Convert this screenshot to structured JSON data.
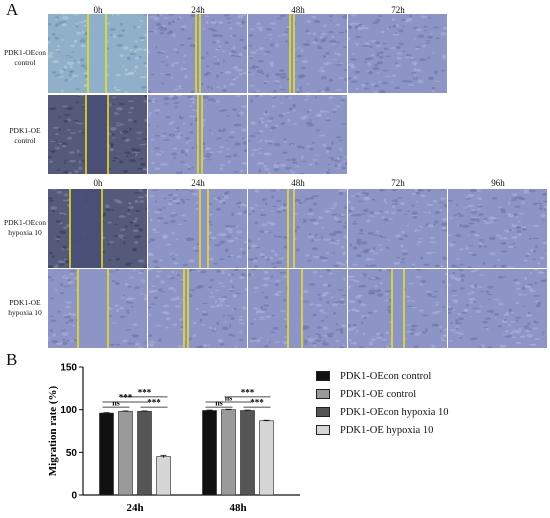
{
  "panel_a": {
    "letter": "A",
    "group1": {
      "times": [
        "0h",
        "24h",
        "48h",
        "72h"
      ],
      "rows": [
        {
          "label_line1": "PDK1-OEcon",
          "label_line2": "control"
        },
        {
          "label_line1": "PDK1-OE",
          "label_line2": "control"
        }
      ]
    },
    "group2": {
      "times": [
        "0h",
        "24h",
        "48h",
        "72h",
        "96h"
      ],
      "rows": [
        {
          "label_line1": "PDK1-OEcon",
          "label_line2": "hypoxia 10"
        },
        {
          "label_line1": "PDK1-OE",
          "label_line2": "hypoxia 10"
        }
      ]
    }
  },
  "panel_b": {
    "letter": "B"
  },
  "colors": {
    "scratch_line": "#e8e020",
    "series": [
      "#111111",
      "#9a9a9a",
      "#555555",
      "#d6d6d6"
    ]
  },
  "chart_data": {
    "type": "bar",
    "categories": [
      "24h",
      "48h"
    ],
    "series": [
      {
        "name": "PDK1-OEcon control",
        "values": [
          96,
          99
        ],
        "errors": [
          0.5,
          0.5
        ]
      },
      {
        "name": "PDK1-OE control",
        "values": [
          98,
          100
        ],
        "errors": [
          0.5,
          0.5
        ]
      },
      {
        "name": "PDK1-OEcon hypoxia 10",
        "values": [
          98,
          99
        ],
        "errors": [
          0.5,
          0.5
        ]
      },
      {
        "name": "PDK1-OE hypoxia 10",
        "values": [
          45,
          87
        ],
        "errors": [
          1.5,
          0.6
        ]
      }
    ],
    "ylabel": "Migration rate (%)",
    "xlabel": "",
    "ylim": [
      0,
      150
    ],
    "yticks": [
      0,
      50,
      100,
      150
    ],
    "grid": false,
    "legend_position": "right",
    "significance": [
      {
        "category": 0,
        "from": 0,
        "to": 1,
        "label": "ns",
        "level": 0
      },
      {
        "category": 0,
        "from": 0,
        "to": 2,
        "label": "***",
        "level": 1
      },
      {
        "category": 0,
        "from": 1,
        "to": 3,
        "label": "***",
        "level": 2
      },
      {
        "category": 0,
        "from": 2,
        "to": 3,
        "label": "***",
        "level": 0
      },
      {
        "category": 1,
        "from": 0,
        "to": 1,
        "label": "ns",
        "level": 0
      },
      {
        "category": 1,
        "from": 0,
        "to": 2,
        "label": "ns",
        "level": 1
      },
      {
        "category": 1,
        "from": 1,
        "to": 3,
        "label": "***",
        "level": 2
      },
      {
        "category": 1,
        "from": 2,
        "to": 3,
        "label": "***",
        "level": 0
      }
    ]
  }
}
